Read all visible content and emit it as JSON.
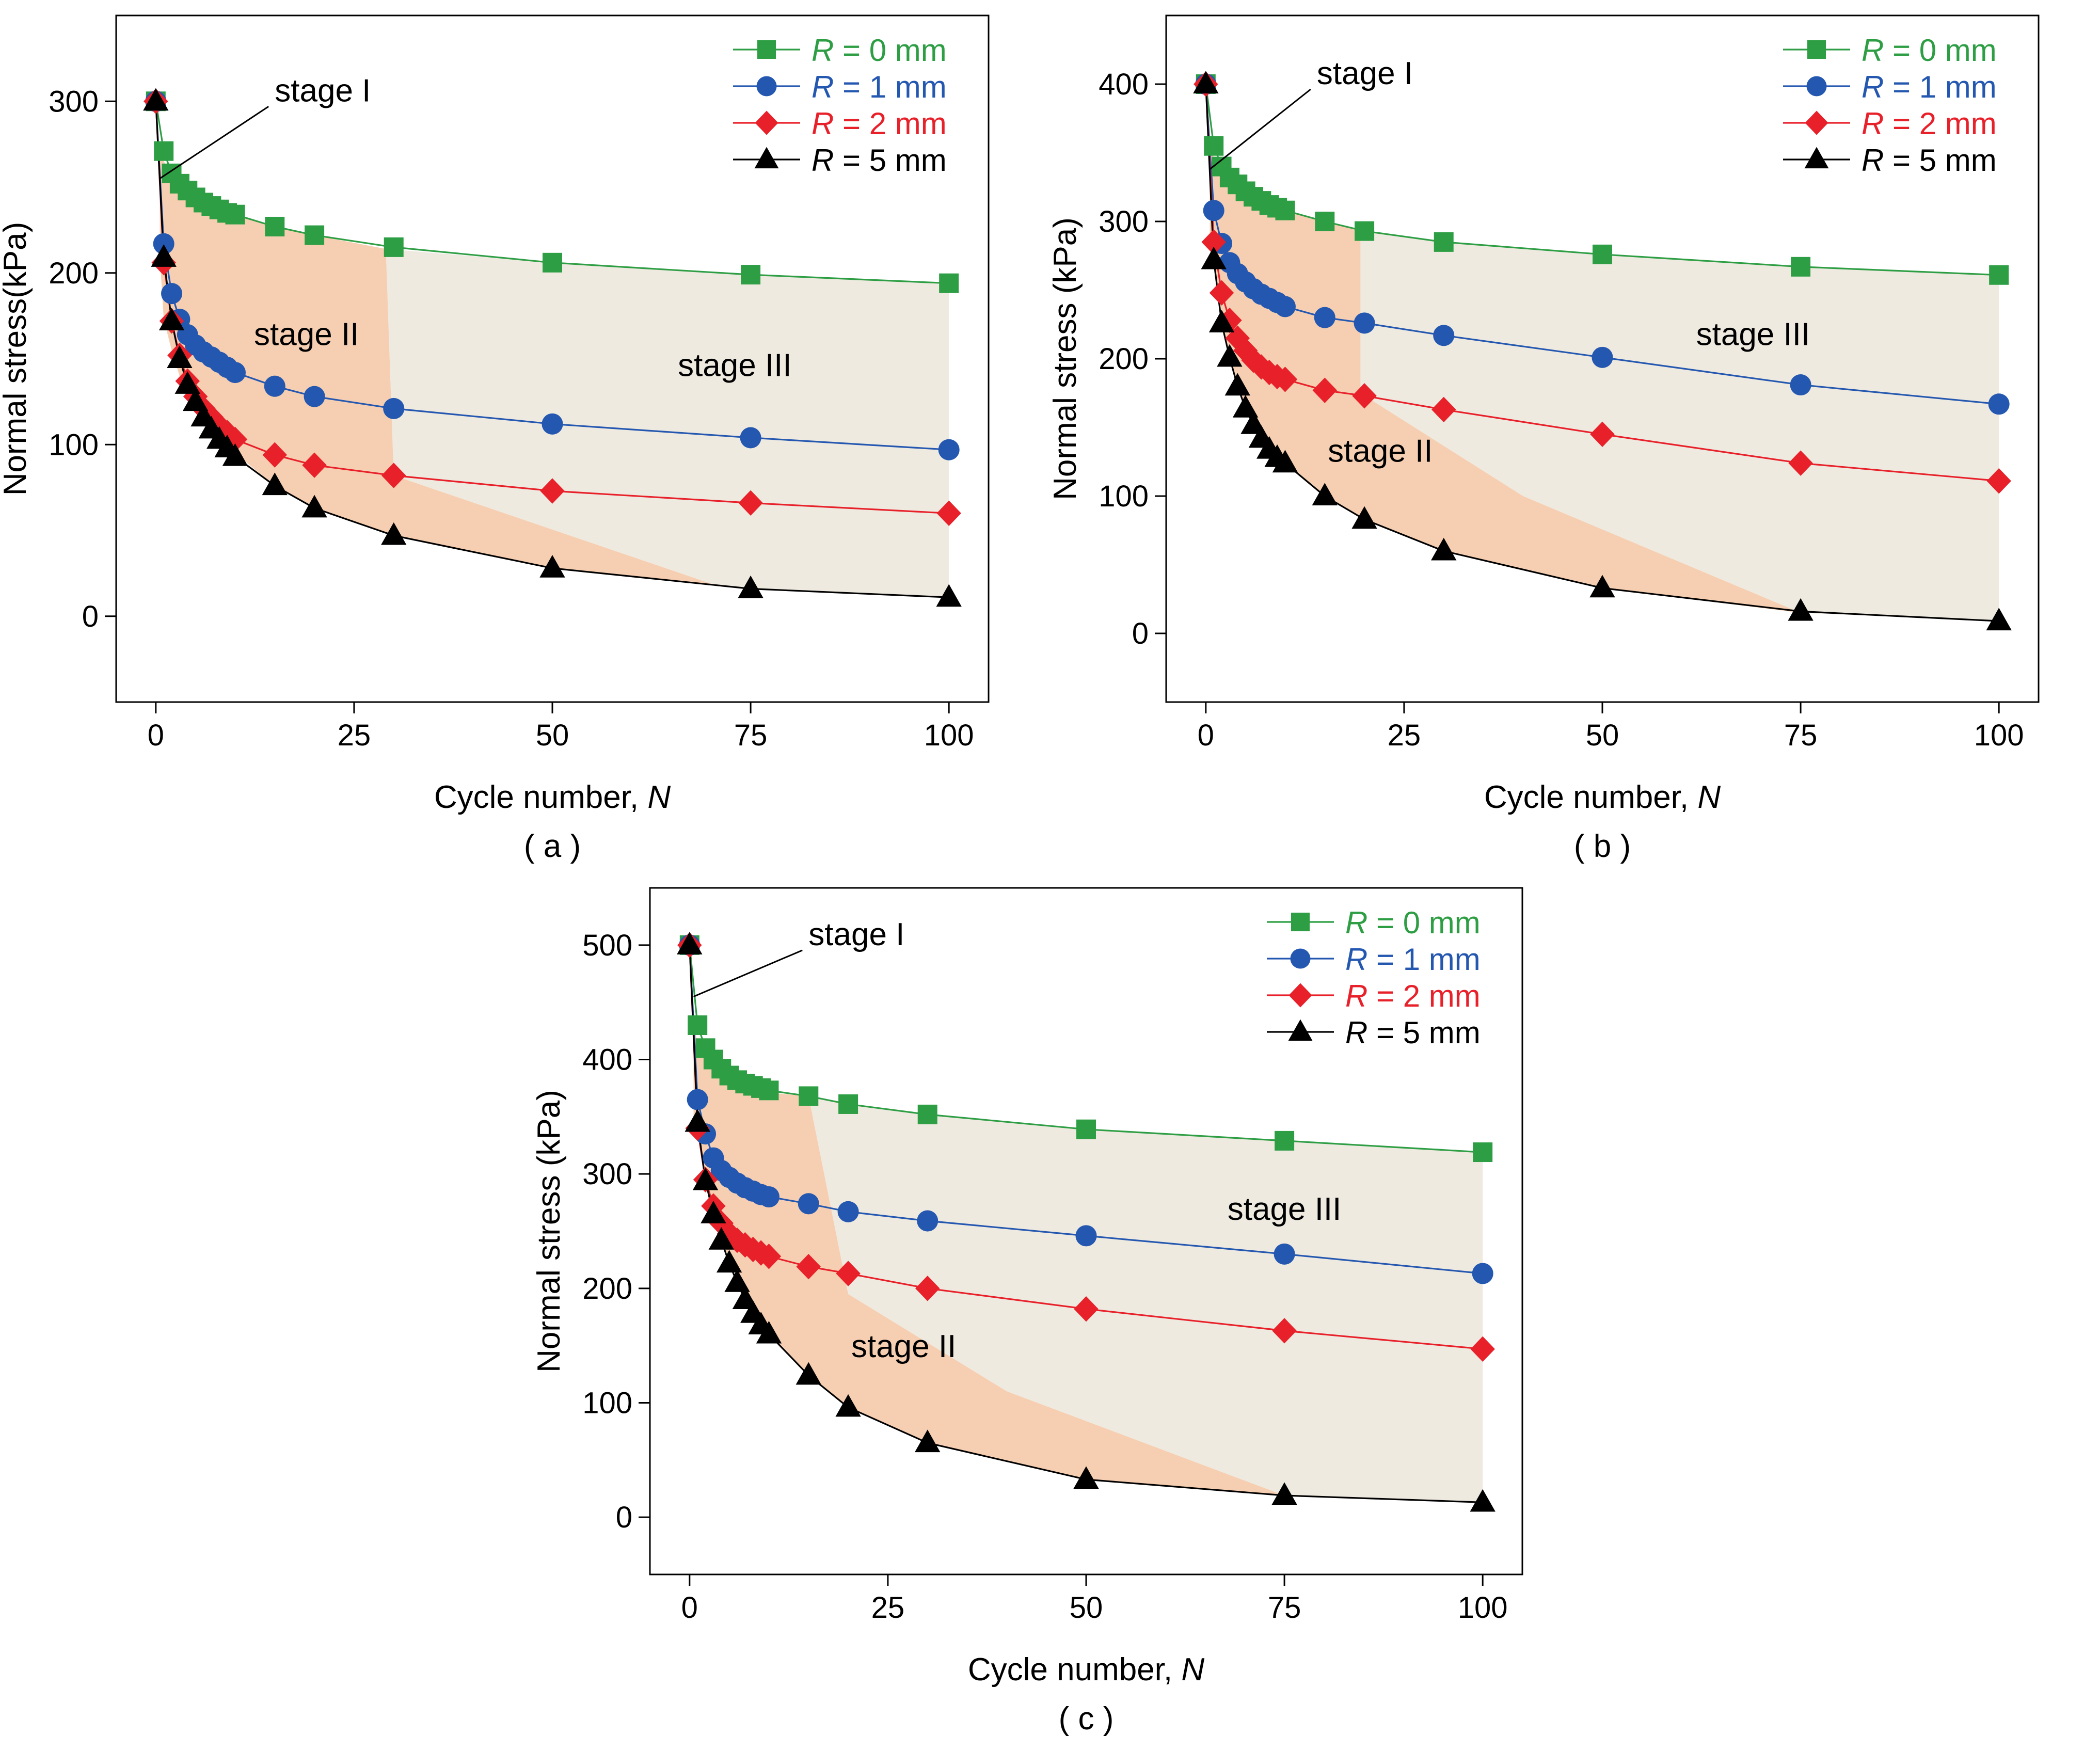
{
  "figure": {
    "panels": [
      "a",
      "b",
      "c"
    ]
  },
  "chart_data": [
    {
      "id": "a",
      "type": "line",
      "panel_label": "( a )",
      "xlabel": "Cycle number, ",
      "xlabel_var": "N",
      "ylabel": "Normal stress(kPa)",
      "xlim": [
        -5,
        105
      ],
      "ylim": [
        -50,
        350
      ],
      "xticks": [
        0,
        25,
        50,
        75,
        100
      ],
      "yticks": [
        0,
        100,
        200,
        300
      ],
      "grid": false,
      "legend_position": "top-right",
      "stage_labels": {
        "stage1": "stage I",
        "stage2": "stage II",
        "stage3": "stage III"
      },
      "stage_label_pos": {
        "s1": [
          15,
          300
        ],
        "s1_tip": [
          0.5,
          255
        ],
        "s2": [
          19,
          158
        ],
        "s3": [
          73,
          140
        ]
      },
      "regions": {
        "stage3": [
          [
            29,
            214
          ],
          [
            50,
            206
          ],
          [
            75,
            199
          ],
          [
            100,
            194
          ],
          [
            100,
            11
          ],
          [
            75,
            16
          ],
          [
            70,
            19
          ],
          [
            30,
            82
          ]
        ],
        "stage2": [
          [
            0.5,
            270
          ],
          [
            1,
            265
          ],
          [
            2,
            258
          ],
          [
            3,
            252
          ],
          [
            4,
            248
          ],
          [
            5,
            244
          ],
          [
            6,
            241
          ],
          [
            7,
            239
          ],
          [
            8,
            237
          ],
          [
            9,
            235
          ],
          [
            10,
            234
          ],
          [
            15,
            227
          ],
          [
            20,
            222
          ],
          [
            29,
            214
          ],
          [
            30,
            82
          ],
          [
            70,
            19
          ],
          [
            75,
            16
          ],
          [
            50,
            28
          ],
          [
            30,
            47
          ],
          [
            20,
            63
          ],
          [
            15,
            76
          ],
          [
            10,
            95
          ],
          [
            5,
            120
          ],
          [
            3,
            140
          ],
          [
            2,
            155
          ],
          [
            1,
            173
          ],
          [
            0.5,
            210
          ]
        ]
      },
      "series": [
        {
          "name": "R",
          "unit": " = 0 mm",
          "color": "#2E9E44",
          "marker": "square",
          "x": [
            0,
            1,
            2,
            3,
            4,
            5,
            6,
            7,
            8,
            9,
            10,
            15,
            20,
            30,
            50,
            75,
            100
          ],
          "y": [
            300,
            271,
            258,
            252,
            248,
            244,
            241,
            239,
            237,
            235,
            234,
            227,
            222,
            215,
            206,
            199,
            194
          ]
        },
        {
          "name": "R",
          "unit": " = 1 mm",
          "color": "#2457B0",
          "marker": "circle",
          "x": [
            0,
            1,
            2,
            3,
            4,
            5,
            6,
            7,
            8,
            9,
            10,
            15,
            20,
            30,
            50,
            75,
            100
          ],
          "y": [
            300,
            217,
            188,
            173,
            164,
            158,
            154,
            151,
            148,
            145,
            142,
            134,
            128,
            121,
            112,
            104,
            97
          ]
        },
        {
          "name": "R",
          "unit": " = 2 mm",
          "color": "#E8202A",
          "marker": "diamond",
          "x": [
            0,
            1,
            2,
            3,
            4,
            5,
            6,
            7,
            8,
            9,
            10,
            15,
            20,
            30,
            50,
            75,
            100
          ],
          "y": [
            300,
            206,
            172,
            152,
            137,
            128,
            121,
            116,
            111,
            107,
            103,
            94,
            88,
            82,
            73,
            66,
            60
          ]
        },
        {
          "name": "R",
          "unit": " = 5 mm",
          "color": "#000000",
          "marker": "triangle",
          "x": [
            0,
            1,
            2,
            3,
            4,
            5,
            6,
            7,
            8,
            9,
            10,
            15,
            20,
            30,
            50,
            75,
            100
          ],
          "y": [
            300,
            209,
            172,
            150,
            135,
            125,
            116,
            109,
            103,
            98,
            93,
            76,
            63,
            47,
            28,
            16,
            11
          ]
        }
      ]
    },
    {
      "id": "b",
      "type": "line",
      "panel_label": "( b )",
      "xlabel": "Cycle number, ",
      "xlabel_var": "N",
      "ylabel": "Normal stress (kPa)",
      "xlim": [
        -5,
        105
      ],
      "ylim": [
        -50,
        450
      ],
      "xticks": [
        0,
        25,
        50,
        75,
        100
      ],
      "yticks": [
        0,
        100,
        200,
        300,
        400
      ],
      "grid": false,
      "legend_position": "top-right",
      "stage_labels": {
        "stage1": "stage I",
        "stage2": "stage II",
        "stage3": "stage III"
      },
      "stage_label_pos": {
        "s1": [
          14,
          400
        ],
        "s1_tip": [
          0.5,
          338
        ],
        "s2": [
          22,
          125
        ],
        "s3": [
          69,
          210
        ]
      },
      "regions": {
        "stage3": [
          [
            19.5,
            293
          ],
          [
            30,
            285
          ],
          [
            50,
            276
          ],
          [
            75,
            267
          ],
          [
            100,
            261
          ],
          [
            100,
            9
          ],
          [
            75,
            15
          ],
          [
            40,
            100
          ],
          [
            19.5,
            175
          ]
        ],
        "stage2": [
          [
            0.5,
            355
          ],
          [
            1,
            347
          ],
          [
            2,
            337
          ],
          [
            3,
            331
          ],
          [
            4,
            326
          ],
          [
            5,
            322
          ],
          [
            6,
            318
          ],
          [
            7,
            315
          ],
          [
            8,
            312
          ],
          [
            9,
            310
          ],
          [
            10,
            308
          ],
          [
            15,
            300
          ],
          [
            19.5,
            293
          ],
          [
            19.5,
            175
          ],
          [
            40,
            100
          ],
          [
            75,
            15
          ],
          [
            50,
            33
          ],
          [
            30,
            60
          ],
          [
            20,
            83
          ],
          [
            15,
            100
          ],
          [
            10,
            125
          ],
          [
            5,
            165
          ],
          [
            3,
            200
          ],
          [
            2,
            225
          ],
          [
            1,
            270
          ],
          [
            0.5,
            280
          ]
        ]
      },
      "series": [
        {
          "name": "R",
          "unit": " = 0 mm",
          "color": "#2E9E44",
          "marker": "square",
          "x": [
            0,
            1,
            2,
            3,
            4,
            5,
            6,
            7,
            8,
            9,
            10,
            15,
            20,
            30,
            50,
            75,
            100
          ],
          "y": [
            400,
            355,
            340,
            332,
            327,
            322,
            318,
            315,
            312,
            310,
            308,
            300,
            293,
            285,
            276,
            267,
            261
          ]
        },
        {
          "name": "R",
          "unit": " = 1 mm",
          "color": "#2457B0",
          "marker": "circle",
          "x": [
            0,
            1,
            2,
            3,
            4,
            5,
            6,
            7,
            8,
            9,
            10,
            15,
            20,
            30,
            50,
            75,
            100
          ],
          "y": [
            400,
            308,
            284,
            270,
            262,
            256,
            251,
            247,
            244,
            241,
            238,
            230,
            226,
            217,
            201,
            181,
            167
          ]
        },
        {
          "name": "R",
          "unit": " = 2 mm",
          "color": "#E8202A",
          "marker": "diamond",
          "x": [
            0,
            1,
            2,
            3,
            4,
            5,
            6,
            7,
            8,
            9,
            10,
            15,
            20,
            30,
            50,
            75,
            100
          ],
          "y": [
            400,
            285,
            248,
            228,
            215,
            206,
            199,
            194,
            190,
            187,
            185,
            177,
            173,
            163,
            145,
            124,
            111
          ]
        },
        {
          "name": "R",
          "unit": " = 5 mm",
          "color": "#000000",
          "marker": "triangle",
          "x": [
            0,
            1,
            2,
            3,
            4,
            5,
            6,
            7,
            8,
            9,
            10,
            15,
            20,
            30,
            50,
            75,
            100
          ],
          "y": [
            400,
            272,
            226,
            201,
            180,
            164,
            152,
            142,
            134,
            128,
            124,
            100,
            83,
            60,
            33,
            16,
            9
          ]
        }
      ]
    },
    {
      "id": "c",
      "type": "line",
      "panel_label": "( c )",
      "xlabel": "Cycle number, ",
      "xlabel_var": "N",
      "ylabel": "Normal stress (kPa)",
      "xlim": [
        -5,
        105
      ],
      "ylim": [
        -50,
        550
      ],
      "xticks": [
        0,
        25,
        50,
        75,
        100
      ],
      "yticks": [
        0,
        100,
        200,
        300,
        400,
        500
      ],
      "grid": false,
      "legend_position": "top-right",
      "stage_labels": {
        "stage1": "stage I",
        "stage2": "stage II",
        "stage3": "stage III"
      },
      "stage_label_pos": {
        "s1": [
          15,
          500
        ],
        "s1_tip": [
          0.5,
          455
        ],
        "s2": [
          27,
          140
        ],
        "s3": [
          75,
          260
        ]
      },
      "regions": {
        "stage3": [
          [
            15,
            368
          ],
          [
            20,
            361
          ],
          [
            30,
            352
          ],
          [
            50,
            339
          ],
          [
            75,
            329
          ],
          [
            100,
            319
          ],
          [
            100,
            13
          ],
          [
            75,
            19
          ],
          [
            40,
            110
          ],
          [
            20,
            195
          ]
        ],
        "stage2": [
          [
            0.5,
            430
          ],
          [
            1,
            415
          ],
          [
            2,
            400
          ],
          [
            3,
            392
          ],
          [
            4,
            386
          ],
          [
            5,
            381
          ],
          [
            6,
            378
          ],
          [
            7,
            376
          ],
          [
            8,
            374
          ],
          [
            9,
            372
          ],
          [
            10,
            371
          ],
          [
            15,
            368
          ],
          [
            20,
            195
          ],
          [
            40,
            110
          ],
          [
            75,
            19
          ],
          [
            50,
            33
          ],
          [
            30,
            65
          ],
          [
            20,
            96
          ],
          [
            15,
            124
          ],
          [
            10,
            160
          ],
          [
            5,
            225
          ],
          [
            3,
            265
          ],
          [
            2,
            293
          ],
          [
            1,
            335
          ],
          [
            0.5,
            350
          ]
        ]
      },
      "series": [
        {
          "name": "R",
          "unit": " = 0 mm",
          "color": "#2E9E44",
          "marker": "square",
          "x": [
            0,
            1,
            2,
            3,
            4,
            5,
            6,
            7,
            8,
            9,
            10,
            15,
            20,
            30,
            50,
            75,
            100
          ],
          "y": [
            500,
            430,
            410,
            400,
            392,
            386,
            382,
            379,
            377,
            375,
            373,
            368,
            361,
            352,
            339,
            329,
            319
          ]
        },
        {
          "name": "R",
          "unit": " = 1 mm",
          "color": "#2457B0",
          "marker": "circle",
          "x": [
            0,
            1,
            2,
            3,
            4,
            5,
            6,
            7,
            8,
            9,
            10,
            15,
            20,
            30,
            50,
            75,
            100
          ],
          "y": [
            500,
            365,
            335,
            314,
            303,
            297,
            292,
            288,
            285,
            282,
            280,
            274,
            267,
            259,
            246,
            230,
            213
          ]
        },
        {
          "name": "R",
          "unit": " = 2 mm",
          "color": "#E8202A",
          "marker": "diamond",
          "x": [
            0,
            1,
            2,
            3,
            4,
            5,
            6,
            7,
            8,
            9,
            10,
            15,
            20,
            30,
            50,
            75,
            100
          ],
          "y": [
            500,
            340,
            295,
            272,
            257,
            248,
            242,
            238,
            234,
            231,
            228,
            219,
            213,
            200,
            182,
            163,
            147
          ]
        },
        {
          "name": "R",
          "unit": " = 5 mm",
          "color": "#000000",
          "marker": "triangle",
          "x": [
            0,
            1,
            2,
            3,
            4,
            5,
            6,
            7,
            8,
            9,
            10,
            15,
            20,
            30,
            50,
            75,
            100
          ],
          "y": [
            500,
            345,
            294,
            265,
            242,
            222,
            205,
            190,
            178,
            168,
            160,
            124,
            96,
            65,
            33,
            19,
            13
          ]
        }
      ]
    }
  ]
}
